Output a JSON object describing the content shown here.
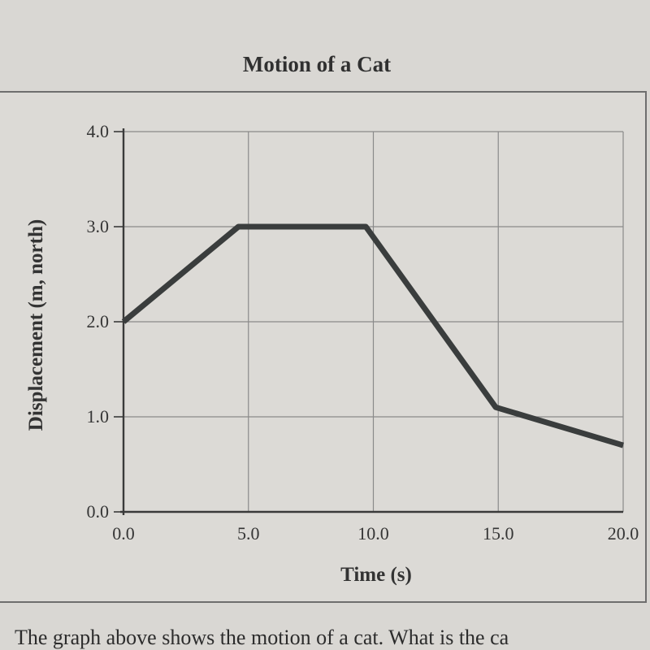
{
  "chart_data": {
    "type": "line",
    "title": "Motion of a Cat",
    "xlabel": "Time (s)",
    "ylabel": "Displacement (m, north)",
    "xlim": [
      0,
      20
    ],
    "ylim": [
      0,
      4
    ],
    "x_ticks": [
      "0.0",
      "5.0",
      "10.0",
      "15.0",
      "20.0"
    ],
    "y_ticks": [
      "0.0",
      "1.0",
      "2.0",
      "3.0",
      "4.0"
    ],
    "grid": true,
    "series": [
      {
        "x": [
          0.0,
          4.6,
          9.7,
          14.9,
          20.0
        ],
        "y": [
          2.0,
          3.0,
          3.0,
          1.1,
          0.7
        ]
      }
    ],
    "colors": {
      "line": "#3a3d3d",
      "grid": "#8a8a8a",
      "axis": "#3a3a3a"
    }
  },
  "caption": "The graph above shows the motion of a cat. What is the ca"
}
